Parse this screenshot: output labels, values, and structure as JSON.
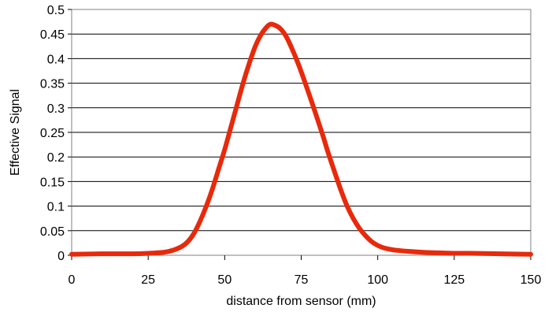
{
  "chart_data": {
    "type": "line",
    "title": "",
    "xlabel": "distance from sensor (mm)",
    "ylabel": "Effective Signal",
    "xlim": [
      0,
      150
    ],
    "ylim": [
      0,
      0.5
    ],
    "x_ticks": [
      0,
      25,
      50,
      75,
      100,
      125,
      150
    ],
    "x_tick_labels": [
      "0",
      "25",
      "50",
      "75",
      "100",
      "125",
      "150"
    ],
    "y_ticks": [
      0,
      0.05,
      0.1,
      0.15,
      0.2,
      0.25,
      0.3,
      0.35,
      0.4,
      0.45,
      0.5
    ],
    "y_tick_labels": [
      "0",
      "0.05",
      "0.1",
      "0.15",
      "0.2",
      "0.25",
      "0.3",
      "0.35",
      "0.4",
      "0.45",
      "0.5"
    ],
    "grid": "horizontal",
    "legend": "none",
    "line_color": "#e8290b",
    "series": [
      {
        "x": [
          0,
          10,
          20,
          25,
          30,
          33,
          36,
          38,
          40,
          42,
          44,
          46,
          48,
          50,
          52,
          54,
          56,
          58,
          60,
          62,
          64,
          65,
          66,
          68,
          70,
          72,
          74,
          76,
          78,
          80,
          82,
          84,
          86,
          88,
          90,
          92,
          94,
          96,
          98,
          100,
          102,
          105,
          110,
          115,
          120,
          125,
          130,
          140,
          150
        ],
        "y": [
          0.002,
          0.003,
          0.003,
          0.004,
          0.006,
          0.01,
          0.018,
          0.028,
          0.045,
          0.07,
          0.1,
          0.135,
          0.175,
          0.215,
          0.26,
          0.305,
          0.35,
          0.39,
          0.425,
          0.45,
          0.466,
          0.47,
          0.469,
          0.462,
          0.446,
          0.42,
          0.39,
          0.356,
          0.32,
          0.283,
          0.245,
          0.205,
          0.168,
          0.132,
          0.1,
          0.075,
          0.055,
          0.04,
          0.028,
          0.02,
          0.015,
          0.011,
          0.008,
          0.006,
          0.005,
          0.004,
          0.004,
          0.003,
          0.002
        ]
      }
    ]
  }
}
